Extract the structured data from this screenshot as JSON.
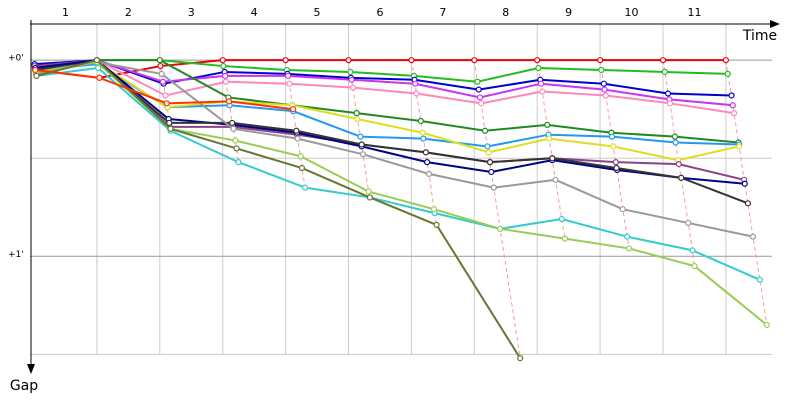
{
  "chart_data": {
    "type": "line",
    "x_label": "Time",
    "y_label": "Gap",
    "categories": [
      "1",
      "2",
      "3",
      "4",
      "5",
      "6",
      "7",
      "8",
      "9",
      "10",
      "11"
    ],
    "xlim": [
      0,
      11.86
    ],
    "xticks": [
      1,
      2,
      3,
      4,
      5,
      6,
      7,
      8,
      9,
      10,
      11
    ],
    "ylim": [
      -0.21,
      1.58
    ],
    "yticks": [
      {
        "value": 0,
        "label": "+0'"
      },
      {
        "value": 1,
        "label": "+1'"
      }
    ],
    "y_minor_ticks": [
      0.5,
      1.5
    ],
    "grid": true,
    "series": [
      {
        "color": "#e8000b",
        "x": [
          0.02,
          1.04,
          2.01,
          3,
          4,
          5,
          6,
          7,
          8,
          9,
          10,
          11
        ],
        "values": [
          0.05,
          0.09,
          0.03,
          0,
          0,
          0,
          0,
          0,
          0,
          0,
          0,
          0
        ]
      },
      {
        "color": "#22bb22",
        "x": [
          0.01,
          1,
          2,
          3.01,
          4.02,
          5.03,
          6.04,
          7.05,
          8.02,
          9.02,
          10.03,
          11.03
        ],
        "values": [
          0.03,
          0,
          0,
          0.03,
          0.05,
          0.06,
          0.08,
          0.11,
          0.04,
          0.05,
          0.06,
          0.07
        ]
      },
      {
        "color": "#0000cc",
        "x": [
          0.01,
          1,
          2.06,
          3.03,
          4.03,
          5.04,
          6.05,
          7.07,
          8.05,
          9.06,
          10.08,
          11.09
        ],
        "values": [
          0.02,
          0,
          0.12,
          0.06,
          0.07,
          0.09,
          0.1,
          0.15,
          0.1,
          0.12,
          0.17,
          0.18
        ]
      },
      {
        "color": "#cc33ee",
        "x": [
          0.01,
          1,
          2.05,
          3.04,
          4.04,
          5.05,
          6.06,
          7.09,
          8.06,
          9.07,
          10.1,
          11.11
        ],
        "values": [
          0.03,
          0,
          0.11,
          0.08,
          0.08,
          0.1,
          0.12,
          0.19,
          0.12,
          0.15,
          0.2,
          0.23
        ]
      },
      {
        "color": "#ff88bb",
        "x": [
          0.02,
          1,
          2.09,
          3.05,
          4.06,
          5.07,
          6.08,
          7.11,
          8.08,
          9.09,
          10.11,
          11.13
        ],
        "values": [
          0.04,
          0,
          0.18,
          0.11,
          0.12,
          0.14,
          0.17,
          0.22,
          0.16,
          0.18,
          0.22,
          0.27
        ]
      },
      {
        "color": "#228822",
        "x": [
          0.03,
          1,
          2,
          3.09,
          4.11,
          5.13,
          6.15,
          7.17,
          8.16,
          9.18,
          10.19,
          11.2
        ],
        "values": [
          0.06,
          0,
          0,
          0.19,
          0.23,
          0.27,
          0.31,
          0.36,
          0.33,
          0.37,
          0.39,
          0.42
        ]
      },
      {
        "color": "#2299ee",
        "x": [
          0.02,
          1.01,
          2.12,
          3.11,
          4.12,
          5.19,
          6.19,
          7.21,
          8.18,
          9.19,
          10.2,
          11.21
        ],
        "values": [
          0.05,
          0.02,
          0.24,
          0.23,
          0.26,
          0.39,
          0.4,
          0.44,
          0.38,
          0.39,
          0.42,
          0.43
        ]
      },
      {
        "color": "#dddd22",
        "x": [
          0.03,
          1,
          2.12,
          3.1,
          4.11,
          5.14,
          6.18,
          7.23,
          8.19,
          9.21,
          10.24,
          11.21
        ],
        "values": [
          0.06,
          0.01,
          0.24,
          0.21,
          0.23,
          0.3,
          0.37,
          0.47,
          0.4,
          0.44,
          0.51,
          0.44
        ]
      },
      {
        "color": "#884488",
        "x": [
          0.01,
          1,
          2.16,
          3.16,
          4.18,
          5.21,
          6.23,
          7.25,
          8.24,
          9.25,
          10.25,
          11.29
        ],
        "values": [
          0.03,
          0,
          0.34,
          0.34,
          0.38,
          0.43,
          0.47,
          0.52,
          0.5,
          0.52,
          0.53,
          0.61
        ]
      },
      {
        "color": "#000088",
        "x": [
          0.02,
          1,
          2.14,
          3.16,
          4.18,
          5.21,
          6.25,
          7.27,
          8.24,
          9.27,
          10.29,
          11.3
        ],
        "values": [
          0.04,
          0,
          0.3,
          0.33,
          0.37,
          0.44,
          0.52,
          0.57,
          0.51,
          0.56,
          0.6,
          0.63
        ]
      },
      {
        "color": "#333333",
        "x": [
          0.02,
          1,
          2.15,
          3.15,
          4.17,
          5.21,
          6.23,
          7.25,
          8.24,
          9.26,
          10.29,
          11.35
        ],
        "values": [
          0.05,
          0.01,
          0.32,
          0.32,
          0.36,
          0.43,
          0.47,
          0.52,
          0.5,
          0.55,
          0.6,
          0.73
        ]
      },
      {
        "color": "#999999",
        "x": [
          0.03,
          1,
          2.03,
          3.17,
          4.19,
          5.23,
          6.28,
          7.31,
          8.29,
          9.36,
          10.4,
          11.43
        ],
        "values": [
          0.07,
          0.01,
          0.07,
          0.35,
          0.4,
          0.48,
          0.58,
          0.65,
          0.61,
          0.76,
          0.83,
          0.9
        ]
      },
      {
        "color": "#33cccc",
        "x": [
          0.04,
          1.02,
          2.17,
          3.25,
          4.31,
          5.34,
          6.37,
          7.41,
          8.39,
          9.43,
          10.47,
          11.54
        ],
        "values": [
          0.08,
          0.04,
          0.36,
          0.52,
          0.65,
          0.7,
          0.78,
          0.86,
          0.81,
          0.9,
          0.97,
          1.12
        ]
      },
      {
        "color": "#99cc55",
        "x": [
          0.03,
          1,
          2.17,
          3.2,
          4.24,
          5.32,
          6.36,
          7.41,
          8.44,
          9.46,
          10.5,
          11.65
        ],
        "values": [
          0.06,
          0.01,
          0.35,
          0.41,
          0.49,
          0.67,
          0.76,
          0.86,
          0.91,
          0.96,
          1.05,
          1.35
        ]
      },
      {
        "color": "#667733",
        "x": [
          0.04,
          1,
          2.17,
          3.22,
          4.26,
          5.34,
          6.4,
          7.73
        ],
        "values": [
          0.08,
          0,
          0.35,
          0.45,
          0.55,
          0.7,
          0.84,
          1.52
        ]
      },
      {
        "color": "#ff3300",
        "x": [
          0.02,
          1.04,
          2.11,
          3.1,
          4.12
        ],
        "values": [
          0.05,
          0.09,
          0.22,
          0.21,
          0.25
        ]
      }
    ]
  }
}
